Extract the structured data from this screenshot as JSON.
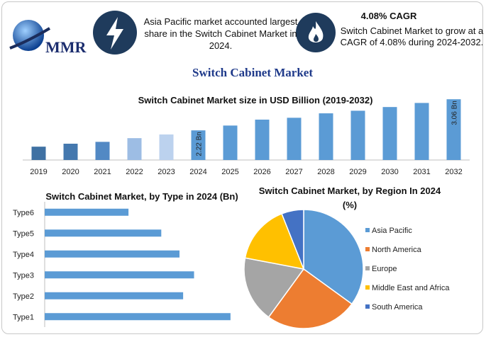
{
  "header": {
    "logo_text": "MMR",
    "stat1": "Asia Pacific market accounted largest share in the Switch Cabinet Market in 2024.",
    "stat2_title": "4.08% CAGR",
    "stat2": "Switch Cabinet Market to grow at a CAGR of 4.08% during 2024-2032.",
    "title": "Switch Cabinet Market"
  },
  "chart_data": [
    {
      "type": "bar",
      "title": "Switch Cabinet Market size in USD Billion (2019-2032)",
      "categories": [
        "2019",
        "2020",
        "2021",
        "2022",
        "2023",
        "2024",
        "2025",
        "2026",
        "2027",
        "2028",
        "2029",
        "2030",
        "2031",
        "2032"
      ],
      "values": [
        1.78,
        1.86,
        1.91,
        2.01,
        2.11,
        2.22,
        2.35,
        2.51,
        2.56,
        2.68,
        2.75,
        2.85,
        2.96,
        3.06
      ],
      "value_labels": [
        null,
        null,
        null,
        null,
        null,
        "2.22 Bn",
        null,
        null,
        null,
        null,
        null,
        null,
        null,
        "3.06 Bn"
      ],
      "colors": [
        "#3f71a3",
        "#4478ae",
        "#5289c4",
        "#9dbde4",
        "#bcd2ee",
        "#5b9bd5",
        "#5b9bd5",
        "#5b9bd5",
        "#5b9bd5",
        "#5b9bd5",
        "#5b9bd5",
        "#5b9bd5",
        "#5b9bd5",
        "#5b9bd5"
      ],
      "ylim": [
        1.42,
        3.14
      ]
    },
    {
      "type": "barh",
      "title": "Switch Cabinet Market, by Type in 2024 (Bn)",
      "categories": [
        "Type6",
        "Type5",
        "Type4",
        "Type3",
        "Type2",
        "Type1"
      ],
      "values": [
        0.23,
        0.32,
        0.37,
        0.41,
        0.38,
        0.51
      ],
      "color": "#5b9bd5",
      "xlim": [
        0,
        0.52
      ]
    },
    {
      "type": "pie",
      "title": "Switch Cabinet Market, by Region In 2024 (%)",
      "categories": [
        "Asia Pacific",
        "North America",
        "Europe",
        "Middle East and Africa",
        "South America"
      ],
      "values": [
        35,
        25,
        18,
        16,
        6
      ],
      "colors": [
        "#5b9bd5",
        "#ed7d31",
        "#a5a5a5",
        "#ffc000",
        "#4472c4"
      ]
    }
  ]
}
